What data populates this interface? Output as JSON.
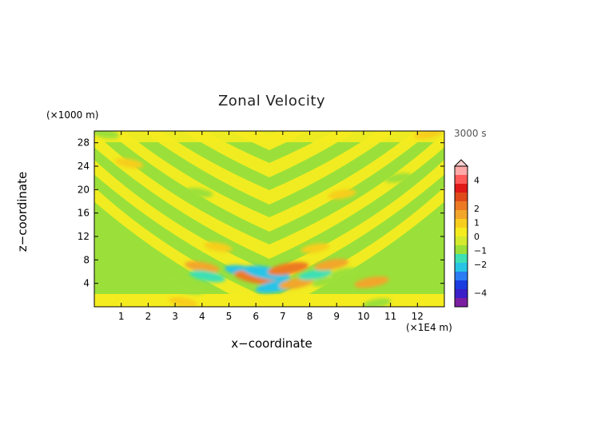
{
  "chart_data": {
    "type": "heatmap",
    "title": "Zonal Velocity",
    "time_label": "3000 s",
    "xlabel": "x−coordinate",
    "ylabel": "z−coordinate",
    "x_units": "(×1E4 m)",
    "y_units": "(×1000 m)",
    "xlim": [
      0,
      13
    ],
    "ylim": [
      0,
      30
    ],
    "x_ticks": [
      "1",
      "2",
      "3",
      "4",
      "5",
      "6",
      "7",
      "8",
      "9",
      "10",
      "11",
      "12"
    ],
    "y_ticks": [
      "4",
      "8",
      "12",
      "16",
      "20",
      "24",
      "28"
    ],
    "colorbar": {
      "range": [
        -5,
        5
      ],
      "tick_values": [
        4,
        2,
        1,
        0,
        -1,
        -2,
        -4
      ],
      "tick_labels": [
        "4",
        "2",
        "1",
        "0",
        "−1",
        "−2",
        "−4"
      ],
      "colors": [
        "#7b1fa2",
        "#3b1fc8",
        "#1a3be0",
        "#2b7cf2",
        "#27c4e6",
        "#3ee0b4",
        "#9be03a",
        "#d4ea2e",
        "#f5ec20",
        "#f7ce1e",
        "#f2a62a",
        "#ec7a22",
        "#e04a1a",
        "#e01818",
        "#ff5a5a",
        "#ffa8a8"
      ]
    },
    "features": [
      {
        "x": 1.3,
        "z": 24.5,
        "value": 1.0
      },
      {
        "x": 12.4,
        "z": 29.5,
        "value": 1.0
      },
      {
        "x": 0.4,
        "z": 29.6,
        "value": -1.0
      },
      {
        "x": 2.6,
        "z": 5.0,
        "value": -1.0
      },
      {
        "x": 3.5,
        "z": 3.0,
        "value": -1.2
      },
      {
        "x": 4.0,
        "z": 6.8,
        "value": 1.5
      },
      {
        "x": 4.2,
        "z": 5.2,
        "value": -1.6
      },
      {
        "x": 4.6,
        "z": 10.2,
        "value": 1.0
      },
      {
        "x": 3.9,
        "z": 19.5,
        "value": -0.9
      },
      {
        "x": 5.6,
        "z": 6.0,
        "value": -2.0
      },
      {
        "x": 6.0,
        "z": 5.0,
        "value": 2.2
      },
      {
        "x": 6.4,
        "z": 5.8,
        "value": -2.5
      },
      {
        "x": 6.8,
        "z": 3.5,
        "value": -2.2
      },
      {
        "x": 7.2,
        "z": 6.5,
        "value": 2.0
      },
      {
        "x": 7.5,
        "z": 4.0,
        "value": 1.5
      },
      {
        "x": 8.2,
        "z": 5.5,
        "value": -1.4
      },
      {
        "x": 8.8,
        "z": 7.2,
        "value": 1.5
      },
      {
        "x": 8.6,
        "z": 4.3,
        "value": -1.0
      },
      {
        "x": 8.2,
        "z": 10.0,
        "value": 1.0
      },
      {
        "x": 9.3,
        "z": 5.8,
        "value": -1.0
      },
      {
        "x": 10.3,
        "z": 4.2,
        "value": 1.5
      },
      {
        "x": 10.5,
        "z": 0.6,
        "value": -1.0
      },
      {
        "x": 9.2,
        "z": 19.2,
        "value": 1.0
      },
      {
        "x": 11.3,
        "z": 22.0,
        "value": -0.9
      },
      {
        "x": 3.3,
        "z": 0.8,
        "value": 1.0
      }
    ]
  }
}
